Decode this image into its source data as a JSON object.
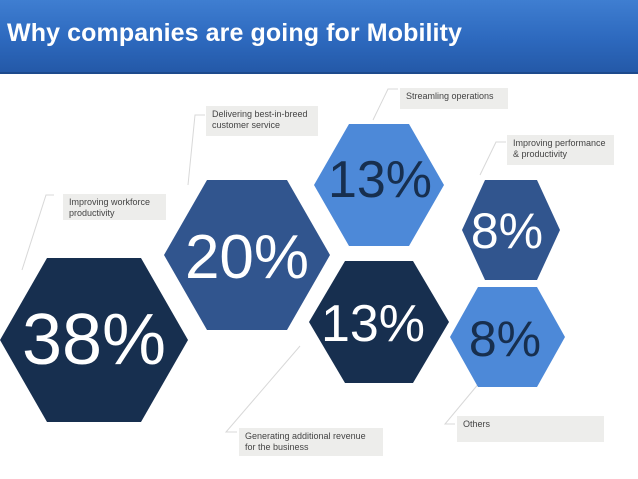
{
  "slide": {
    "title": "Why companies are going for Mobility"
  },
  "colors": {
    "title_bar": "#2d69be",
    "hex_navy": "#172f4f",
    "hex_mid": "#31558e",
    "hex_bright": "#4d89d8",
    "callout_bg": "#ededeb",
    "connector": "#d8d8d8"
  },
  "segments": [
    {
      "id": "workforce",
      "value": "38%",
      "label": "Improving workforce\nproductivity"
    },
    {
      "id": "customer",
      "value": "20%",
      "label": "Delivering best-in-breed\ncustomer service"
    },
    {
      "id": "streamline",
      "value": "13%",
      "label": "Streamling operations"
    },
    {
      "id": "revenue",
      "value": "13%",
      "label": "Generating additional revenue\nfor the business"
    },
    {
      "id": "performance",
      "value": "8%",
      "label": "Improving performance\n& productivity"
    },
    {
      "id": "others",
      "value": "8%",
      "label": "Others"
    }
  ]
}
